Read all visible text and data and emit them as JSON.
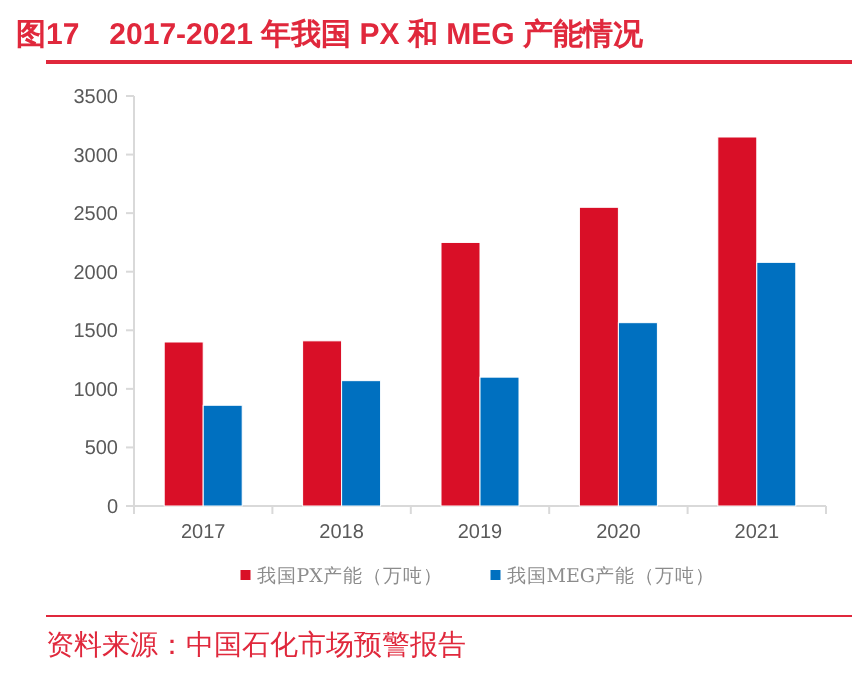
{
  "chart_data": {
    "type": "bar",
    "title": "图17　2017-2021 年我国 PX 和 MEG 产能情况",
    "categories": [
      "2017",
      "2018",
      "2019",
      "2020",
      "2021"
    ],
    "series": [
      {
        "name": "我国PX产能（万吨）",
        "color": "#d90f27",
        "values": [
          1400,
          1410,
          2250,
          2550,
          3150
        ]
      },
      {
        "name": "我国MEG产能（万吨）",
        "color": "#0070c0",
        "values": [
          860,
          1070,
          1100,
          1565,
          2080
        ]
      }
    ],
    "ylim": [
      0,
      3500
    ],
    "yticks": [
      0,
      500,
      1000,
      1500,
      2000,
      2500,
      3000,
      3500
    ],
    "legend": "bottom",
    "annotations": [
      "资料来源：中国石化市场预警报告"
    ]
  }
}
